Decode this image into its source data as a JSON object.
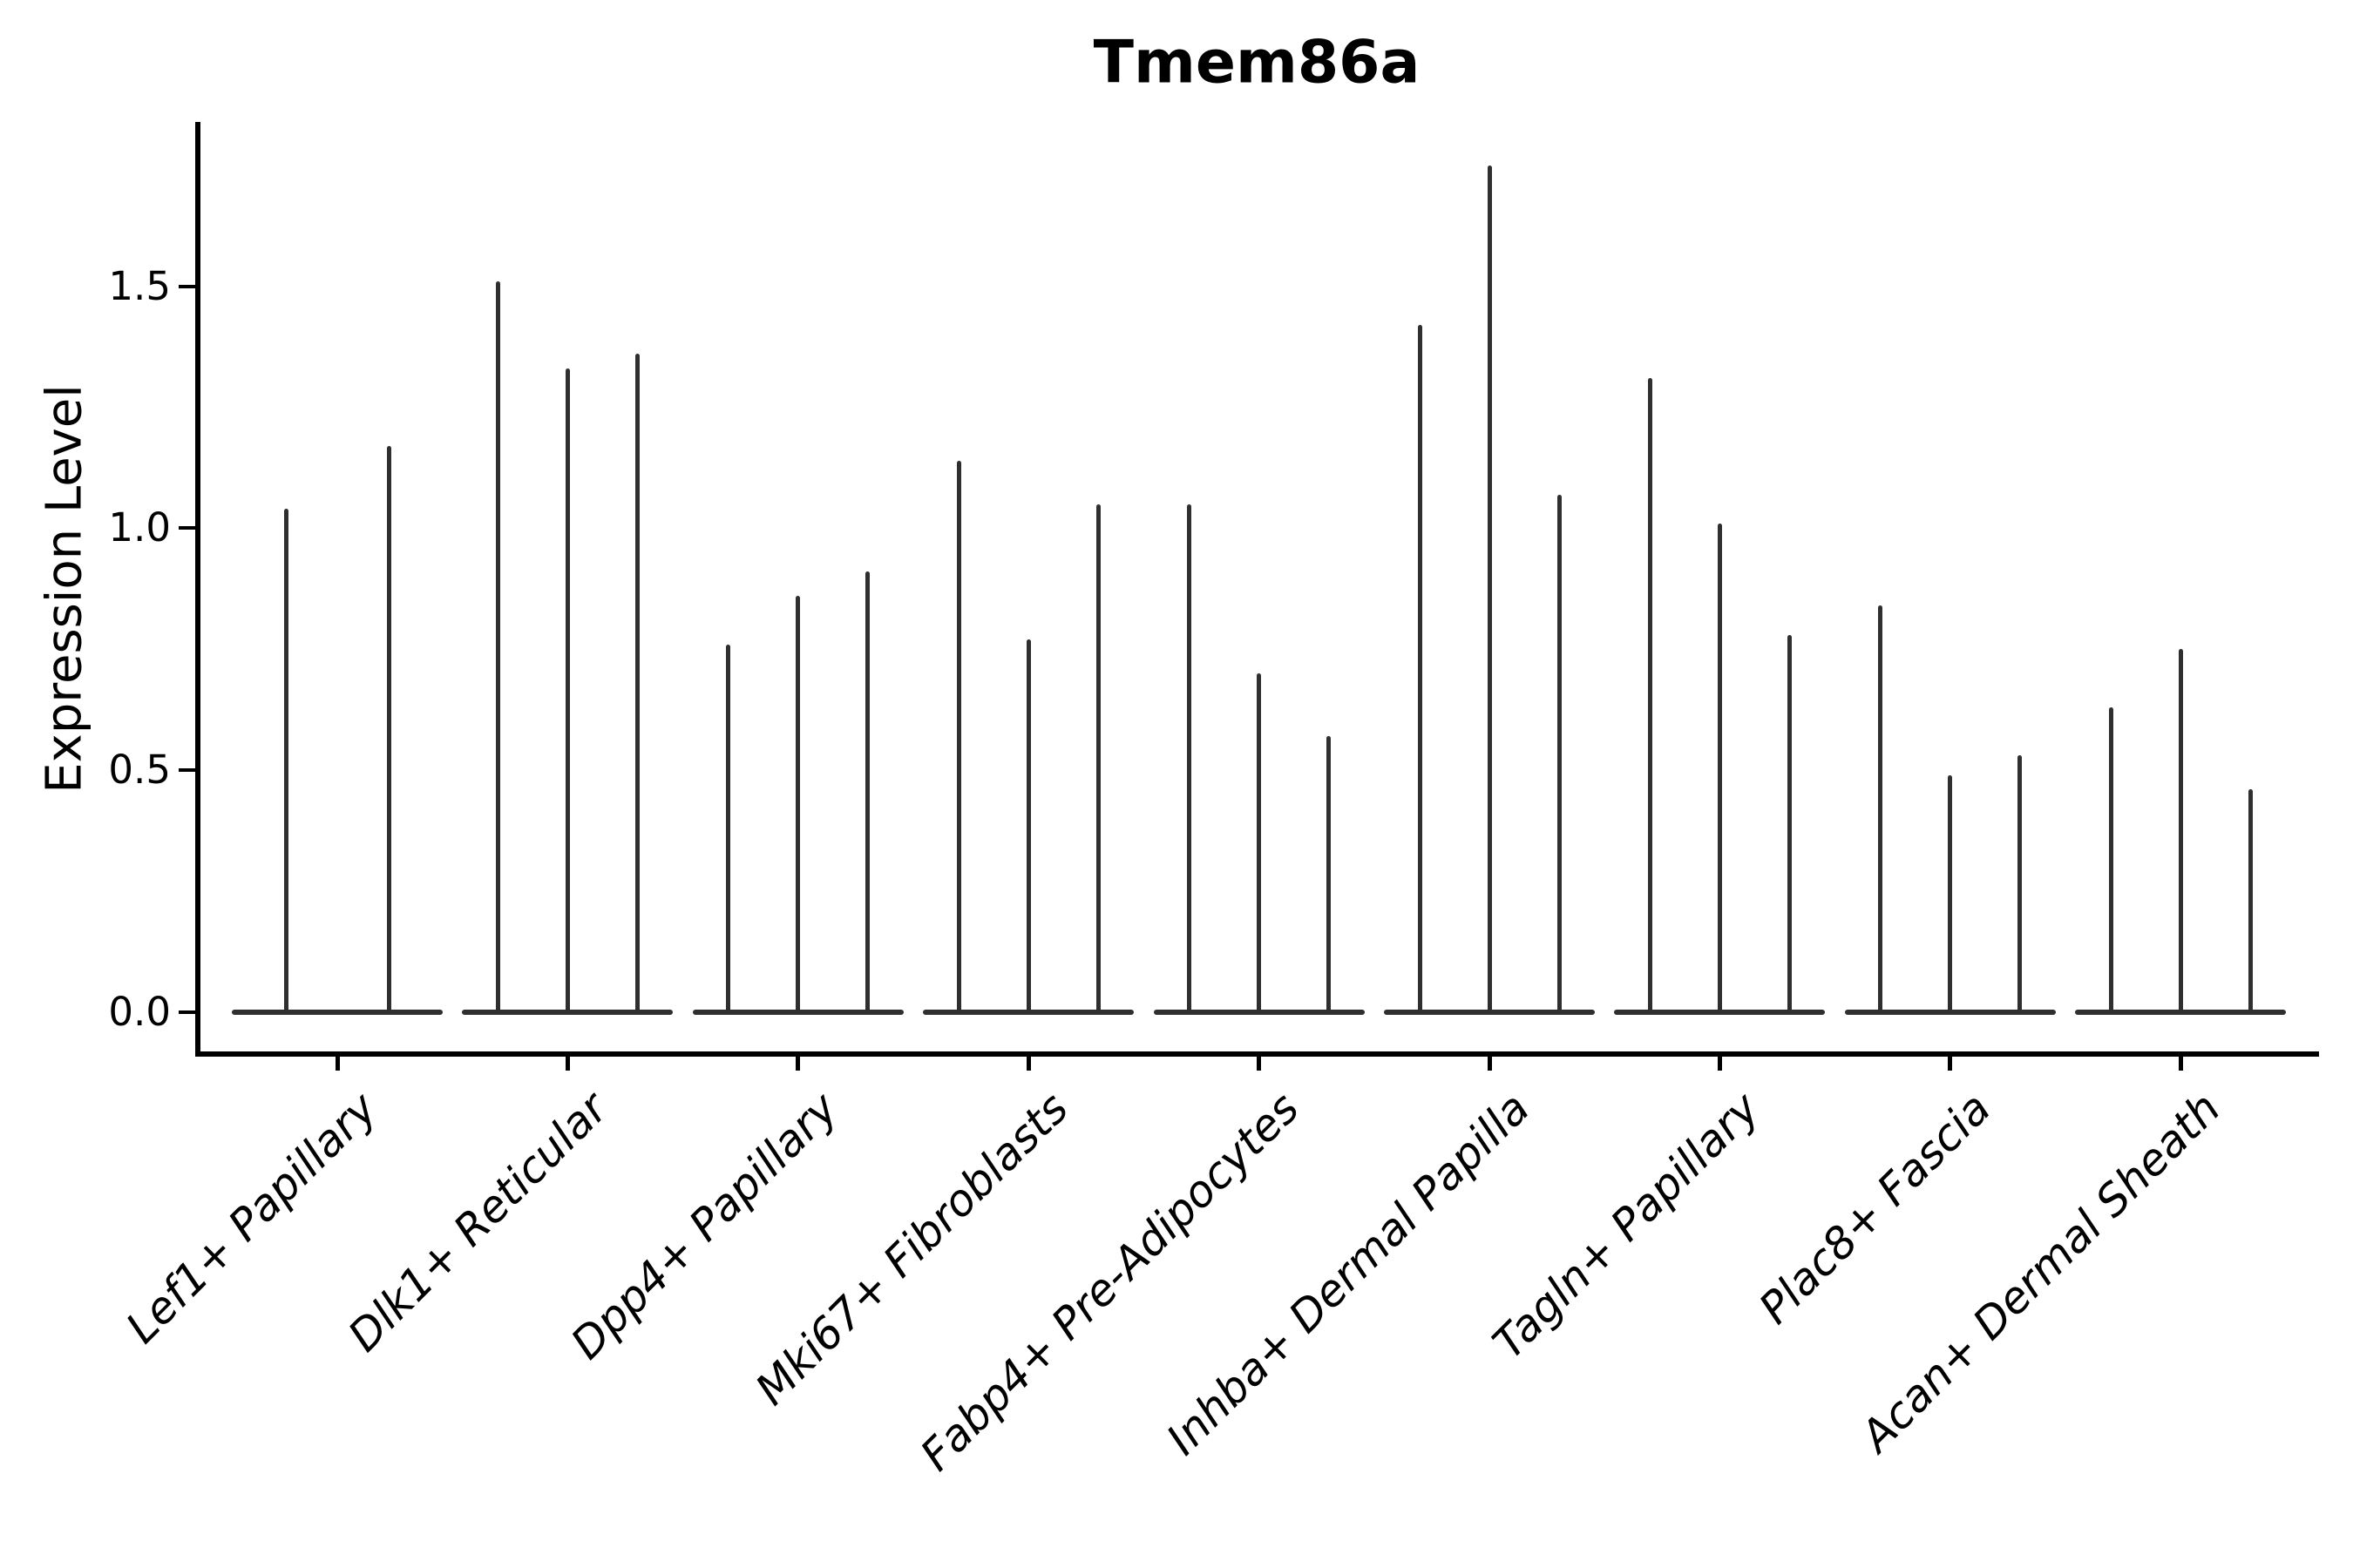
{
  "chart_data": {
    "type": "violin",
    "title": "Tmem86a",
    "xlabel": "",
    "ylabel": "Expression Level",
    "grid": false,
    "legend": "none",
    "background": "#ffffff",
    "violin_color": "#2f2f2f",
    "spine_color": "#000000",
    "text_color": "#000000",
    "ylim": [
      -0.09,
      1.84
    ],
    "ytick_labels": [
      "0.0",
      "0.5",
      "1.0",
      "1.5"
    ],
    "ytick_values": [
      0,
      0.5,
      1.0,
      1.5
    ],
    "categories": [
      "Lef1+ Papillary",
      "Dlk1+ Reticular",
      "Dpp4+ Papillary",
      "Mki67+ Fibroblasts",
      "Fabp4+ Pre-Adipocytes",
      "Inhba+ Dermal Papilla",
      "Tagln+ Papillary",
      "Plac8+ Fascia",
      "Acan+ Dermal Sheath"
    ],
    "series": [
      {
        "name": "Lef1+ Papillary",
        "violin_max_values": [
          1.04,
          1.17
        ]
      },
      {
        "name": "Dlk1+ Reticular",
        "violin_max_values": [
          1.51,
          1.33,
          1.36
        ]
      },
      {
        "name": "Dpp4+ Papillary",
        "violin_max_values": [
          0.76,
          0.86,
          0.91
        ]
      },
      {
        "name": "Mki67+ Fibroblasts",
        "violin_max_values": [
          1.14,
          0.77,
          1.05
        ]
      },
      {
        "name": "Fabp4+ Pre-Adipocytes",
        "violin_max_values": [
          1.05,
          0.7,
          0.57
        ]
      },
      {
        "name": "Inhba+ Dermal Papilla",
        "violin_max_values": [
          1.42,
          1.75,
          1.07
        ]
      },
      {
        "name": "Tagln+ Papillary",
        "violin_max_values": [
          1.31,
          1.01,
          0.78
        ]
      },
      {
        "name": "Plac8+ Fascia",
        "violin_max_values": [
          0.84,
          0.49,
          0.53
        ]
      },
      {
        "name": "Acan+ Dermal Sheath",
        "violin_max_values": [
          0.63,
          0.75,
          0.46
        ]
      }
    ],
    "description": "Violin plot of Tmem86a expression; each category shows 2-3 very thin violins collapsed at 0 with narrow spikes up to the max expression value."
  }
}
